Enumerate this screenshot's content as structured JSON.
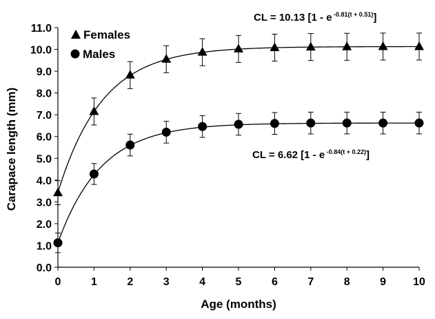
{
  "chart_data": {
    "type": "line",
    "xlabel": "Age (months)",
    "ylabel": "Carapace length (mm)",
    "xlim": [
      0,
      10
    ],
    "ylim": [
      0.0,
      11.0
    ],
    "x_ticks": [
      "0",
      "1",
      "2",
      "3",
      "4",
      "5",
      "6",
      "7",
      "8",
      "9",
      "10"
    ],
    "y_ticks": [
      "0.0",
      "1.0",
      "2.0",
      "3.0",
      "4.0",
      "5.0",
      "6.0",
      "7.0",
      "8.0",
      "9.0",
      "10.0",
      "11.0"
    ],
    "grid": false,
    "legend_position": "top-left",
    "series": [
      {
        "name": "Females",
        "marker": "triangle",
        "x": [
          0,
          1,
          2,
          3,
          4,
          5,
          6,
          7,
          8,
          9,
          10
        ],
        "values": [
          3.42,
          7.15,
          8.82,
          9.55,
          9.87,
          10.02,
          10.08,
          10.11,
          10.12,
          10.13,
          10.13
        ],
        "error": [
          0.55,
          0.62,
          0.62,
          0.62,
          0.62,
          0.62,
          0.62,
          0.62,
          0.62,
          0.62,
          0.62
        ],
        "model": {
          "Linf": 10.13,
          "K": 0.81,
          "t0": -0.51
        },
        "equation": {
          "prefix": "CL = 10.13 [1 - e",
          "exponent": " -0.81(t + 0.51)",
          "suffix": "]"
        }
      },
      {
        "name": "Males",
        "marker": "circle",
        "x": [
          0,
          1,
          2,
          3,
          4,
          5,
          6,
          7,
          8,
          9,
          10
        ],
        "values": [
          1.12,
          4.28,
          5.61,
          6.2,
          6.46,
          6.56,
          6.6,
          6.62,
          6.62,
          6.62,
          6.62
        ],
        "error": [
          0.45,
          0.48,
          0.5,
          0.5,
          0.5,
          0.5,
          0.5,
          0.5,
          0.5,
          0.5,
          0.5
        ],
        "model": {
          "Linf": 6.62,
          "K": 0.84,
          "t0": -0.22
        },
        "equation": {
          "prefix": "CL = 6.62 [1 - e",
          "exponent": " -0.84(t + 0.22)",
          "suffix": "]"
        }
      }
    ]
  }
}
